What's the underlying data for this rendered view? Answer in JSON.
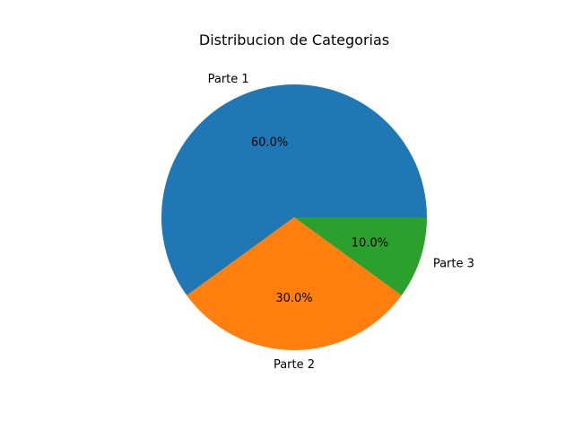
{
  "chart_data": {
    "type": "pie",
    "title": "Distribucion de Categorias",
    "categories": [
      "Parte 1",
      "Parte 2",
      "Parte 3"
    ],
    "values": [
      60,
      30,
      10
    ],
    "percent_labels": [
      "60.0%",
      "30.0%",
      "10.0%"
    ],
    "colors": [
      "#1f77b4",
      "#ff7f0e",
      "#2ca02c"
    ],
    "start_angle_deg": 0,
    "direction": "counterclockwise",
    "legend": "none"
  }
}
